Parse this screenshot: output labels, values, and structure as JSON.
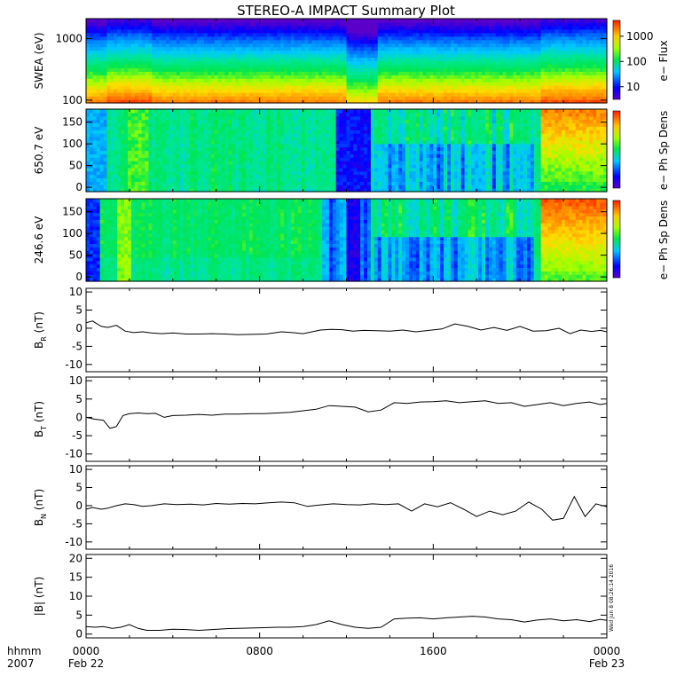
{
  "title": "STEREO-A IMPACT Summary Plot",
  "x_axis": {
    "label_lines": [
      "hhmm",
      "2007"
    ],
    "ticks": [
      {
        "time": "0000",
        "date": "Feb 22",
        "hours": 0
      },
      {
        "time": "0800",
        "date": "",
        "hours": 8
      },
      {
        "time": "1600",
        "date": "",
        "hours": 16
      },
      {
        "time": "0000",
        "date": "Feb 23",
        "hours": 24
      }
    ]
  },
  "timestamp": "Wed Jun  8 08:26:14 2016",
  "colorbars": [
    {
      "label": "e−  Flux",
      "ticks": [
        "1000",
        "100",
        "10"
      ],
      "scale": "log"
    },
    {
      "label": "e−  Ph Sp Dens",
      "ticks": [],
      "scale": "log"
    },
    {
      "label": "e−  Ph Sp Dens",
      "ticks": [],
      "scale": "log"
    }
  ],
  "chart_data": [
    {
      "type": "heatmap",
      "ylabel": "SWEA (eV)",
      "yscale": "log",
      "ylim": [
        90,
        2100
      ],
      "yticks": [
        "1000",
        "100"
      ],
      "colorbar_label": "e−  Flux",
      "time_range_hours": [
        0,
        24
      ],
      "description": "spectrogram"
    },
    {
      "type": "heatmap",
      "ylabel": "650.7 eV",
      "ylim": [
        -10,
        180
      ],
      "yticks": [
        "150",
        "100",
        "50",
        "0"
      ],
      "colorbar_label": "e−  Ph Sp Dens",
      "time_range_hours": [
        0,
        24
      ],
      "description": "pitch angle distribution"
    },
    {
      "type": "heatmap",
      "ylabel": "246.6 eV",
      "ylim": [
        -10,
        180
      ],
      "yticks": [
        "150",
        "100",
        "50",
        "0"
      ],
      "colorbar_label": "e−  Ph Sp Dens",
      "time_range_hours": [
        0,
        24
      ],
      "description": "pitch angle distribution"
    },
    {
      "type": "line",
      "ylabel": "B",
      "ylabel_sub": "R",
      "ylabel_unit": "(nT)",
      "ylim": [
        -12,
        11
      ],
      "yticks": [
        "10",
        "5",
        "0",
        "-5",
        "-10"
      ],
      "series": [
        {
          "x": [
            0,
            0.3,
            0.7,
            1.0,
            1.4,
            1.8,
            2.2,
            2.6,
            3.0,
            3.5,
            4.0,
            4.6,
            5.2,
            5.8,
            6.4,
            7.0,
            7.6,
            8.3,
            9.0,
            9.5,
            10.0,
            10.8,
            11.3,
            11.8,
            12.3,
            12.8,
            13.4,
            14.0,
            14.6,
            15.2,
            15.8,
            16.4,
            17.0,
            17.6,
            18.2,
            18.8,
            19.4,
            20.0,
            20.6,
            21.2,
            21.8,
            22.3,
            22.8,
            23.3,
            23.7,
            24.0
          ],
          "y": [
            1.5,
            2.0,
            0.5,
            0.2,
            0.8,
            -0.8,
            -1.2,
            -1.0,
            -1.3,
            -1.5,
            -1.3,
            -1.6,
            -1.6,
            -1.5,
            -1.6,
            -1.8,
            -1.7,
            -1.6,
            -1.0,
            -1.2,
            -1.5,
            -0.5,
            -0.3,
            -0.4,
            -0.8,
            -0.6,
            -0.7,
            -0.8,
            -0.5,
            -1.0,
            -0.6,
            -0.2,
            1.2,
            0.5,
            -0.5,
            0.2,
            -0.6,
            0.5,
            -0.8,
            -0.7,
            0.0,
            -1.5,
            -0.5,
            -0.9,
            -0.6,
            -1.0
          ]
        }
      ]
    },
    {
      "type": "line",
      "ylabel": "B",
      "ylabel_sub": "T",
      "ylabel_unit": "(nT)",
      "ylim": [
        -12,
        11
      ],
      "yticks": [
        "10",
        "5",
        "0",
        "-5",
        "-10"
      ],
      "series": [
        {
          "x": [
            0,
            0.4,
            0.8,
            1.1,
            1.4,
            1.7,
            2.0,
            2.4,
            2.8,
            3.2,
            3.6,
            4.0,
            4.6,
            5.2,
            5.8,
            6.4,
            7.0,
            7.6,
            8.2,
            8.8,
            9.4,
            10.0,
            10.6,
            11.2,
            11.8,
            12.4,
            13.0,
            13.6,
            14.2,
            14.8,
            15.4,
            16.0,
            16.6,
            17.2,
            17.8,
            18.4,
            19.0,
            19.6,
            20.2,
            20.8,
            21.4,
            22.0,
            22.6,
            23.2,
            23.7,
            24.0
          ],
          "y": [
            0.0,
            -0.5,
            -0.8,
            -3.0,
            -2.5,
            0.5,
            1.0,
            1.2,
            1.0,
            1.1,
            0.0,
            0.5,
            0.6,
            0.8,
            0.6,
            0.9,
            0.9,
            1.0,
            1.0,
            1.2,
            1.4,
            1.8,
            2.2,
            3.2,
            3.0,
            2.8,
            1.5,
            2.0,
            4.0,
            3.8,
            4.2,
            4.3,
            4.5,
            4.0,
            4.3,
            4.5,
            3.8,
            4.0,
            3.0,
            3.5,
            4.0,
            3.2,
            3.8,
            4.2,
            3.5,
            3.8
          ]
        }
      ]
    },
    {
      "type": "line",
      "ylabel": "B",
      "ylabel_sub": "N",
      "ylabel_unit": "(nT)",
      "ylim": [
        -12,
        11
      ],
      "yticks": [
        "10",
        "5",
        "0",
        "-5",
        "-10"
      ],
      "series": [
        {
          "x": [
            0,
            0.3,
            0.7,
            1.0,
            1.4,
            1.8,
            2.2,
            2.6,
            3.0,
            3.6,
            4.2,
            4.8,
            5.4,
            6.0,
            6.6,
            7.2,
            7.8,
            8.4,
            9.0,
            9.6,
            10.2,
            10.8,
            11.4,
            12.0,
            12.6,
            13.2,
            13.8,
            14.4,
            15.0,
            15.6,
            16.2,
            16.8,
            17.4,
            18.0,
            18.6,
            19.2,
            19.8,
            20.4,
            21.0,
            21.5,
            22.0,
            22.5,
            23.0,
            23.5,
            24.0
          ],
          "y": [
            -1.0,
            -0.5,
            -1.0,
            -0.7,
            0.0,
            0.5,
            0.3,
            -0.2,
            0.0,
            0.5,
            0.3,
            0.4,
            0.2,
            0.6,
            0.4,
            0.6,
            0.5,
            0.8,
            1.0,
            0.8,
            -0.2,
            0.2,
            0.5,
            0.3,
            0.2,
            0.5,
            0.3,
            0.5,
            -1.5,
            0.5,
            -0.3,
            0.8,
            -1.0,
            -3.0,
            -1.5,
            -2.5,
            -1.5,
            1.0,
            -1.0,
            -4.0,
            -3.5,
            2.5,
            -3.0,
            0.5,
            -0.3
          ]
        }
      ]
    },
    {
      "type": "line",
      "ylabel": "|B|",
      "ylabel_sub": "",
      "ylabel_unit": "(nT)",
      "ylim": [
        -1,
        21
      ],
      "yticks": [
        "20",
        "15",
        "10",
        "5",
        "0"
      ],
      "series": [
        {
          "x": [
            0,
            0.4,
            0.8,
            1.2,
            1.6,
            2.0,
            2.4,
            2.8,
            3.4,
            4.0,
            4.6,
            5.2,
            5.8,
            6.4,
            7.0,
            7.6,
            8.2,
            8.8,
            9.4,
            10.0,
            10.6,
            11.2,
            11.8,
            12.4,
            13.0,
            13.6,
            14.2,
            14.8,
            15.4,
            16.0,
            16.6,
            17.2,
            17.8,
            18.4,
            19.0,
            19.6,
            20.2,
            20.8,
            21.4,
            22.0,
            22.6,
            23.2,
            23.7,
            24.0
          ],
          "y": [
            2.0,
            1.8,
            2.0,
            1.5,
            1.8,
            2.5,
            1.5,
            1.0,
            1.0,
            1.3,
            1.2,
            1.0,
            1.2,
            1.4,
            1.5,
            1.6,
            1.7,
            1.8,
            1.8,
            2.0,
            2.5,
            3.5,
            2.5,
            1.8,
            1.5,
            1.8,
            4.0,
            4.2,
            4.3,
            4.0,
            4.3,
            4.5,
            4.7,
            4.5,
            4.0,
            3.8,
            3.2,
            3.7,
            4.0,
            3.5,
            3.8,
            3.3,
            3.9,
            3.6
          ]
        }
      ]
    }
  ]
}
